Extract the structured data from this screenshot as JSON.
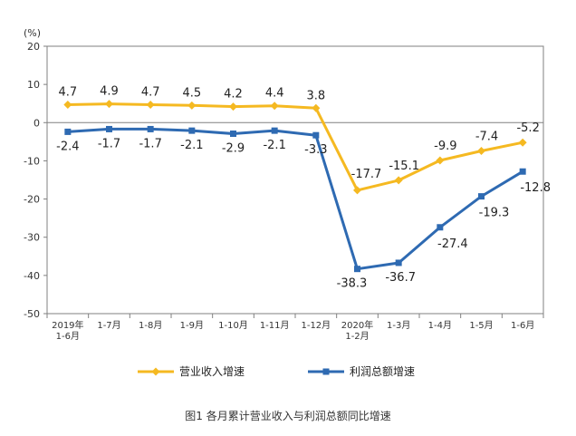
{
  "chart_data": {
    "type": "line",
    "y_unit": "(%)",
    "ylim": [
      -50,
      20
    ],
    "yticks": [
      20,
      10,
      0,
      -10,
      -20,
      -30,
      -40,
      -50
    ],
    "categories": [
      [
        "2019年",
        "1-6月"
      ],
      [
        "1-7月"
      ],
      [
        "1-8月"
      ],
      [
        "1-9月"
      ],
      [
        "1-10月"
      ],
      [
        "1-11月"
      ],
      [
        "1-12月"
      ],
      [
        "2020年",
        "1-2月"
      ],
      [
        "1-3月"
      ],
      [
        "1-4月"
      ],
      [
        "1-5月"
      ],
      [
        "1-6月"
      ]
    ],
    "series": [
      {
        "name": "营业收入增速",
        "color": "#F5B921",
        "values": [
          4.7,
          4.9,
          4.7,
          4.5,
          4.2,
          4.4,
          3.8,
          -17.7,
          -15.1,
          -9.9,
          -7.4,
          -5.2
        ],
        "labels": [
          "4.7",
          "4.9",
          "4.7",
          "4.5",
          "4.2",
          "4.4",
          "3.8",
          "-17.7",
          "-15.1",
          "-9.9",
          "-7.4",
          "-5.2"
        ]
      },
      {
        "name": "利润总额增速",
        "color": "#2E6AB2",
        "values": [
          -2.4,
          -1.7,
          -1.7,
          -2.1,
          -2.9,
          -2.1,
          -3.3,
          -38.3,
          -36.7,
          -27.4,
          -19.3,
          -12.8
        ],
        "labels": [
          "-2.4",
          "-1.7",
          "-1.7",
          "-2.1",
          "-2.9",
          "-2.1",
          "-3.3",
          "-38.3",
          "-36.7",
          "-27.4",
          "-19.3",
          "-12.8"
        ]
      }
    ],
    "legend_position": "bottom",
    "caption": "图1  各月累计营业收入与利润总额同比增速"
  }
}
